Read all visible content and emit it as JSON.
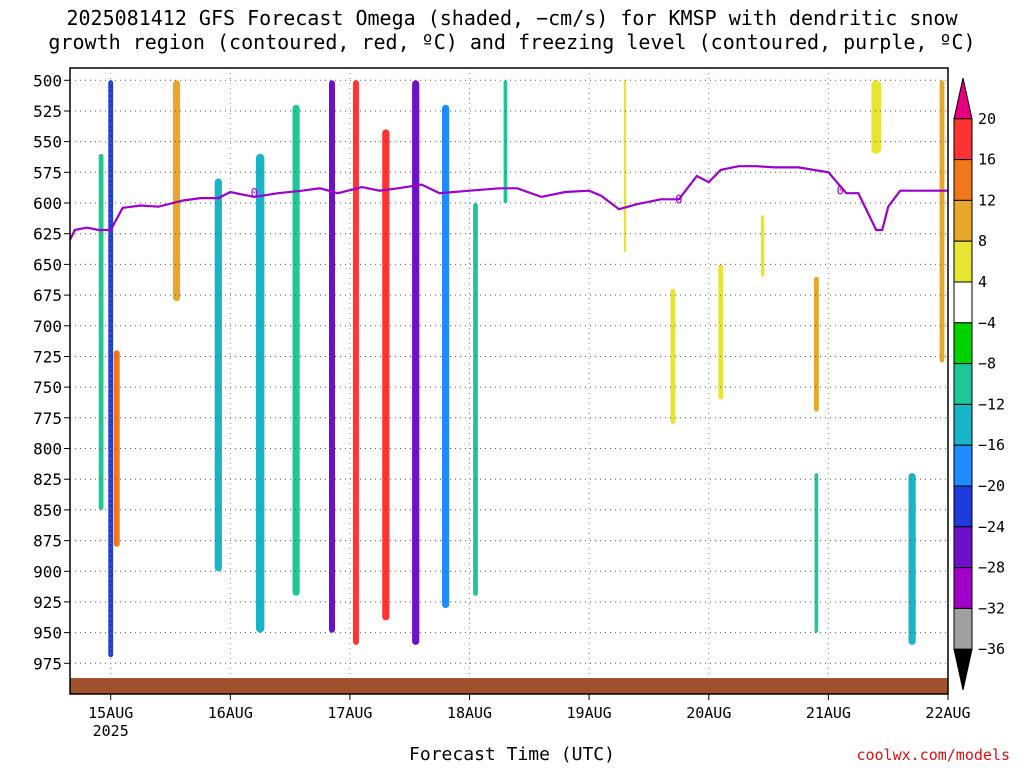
{
  "title_line1": "2025081412 GFS Forecast Omega (shaded, −cm/s) for KMSP with dendritic snow",
  "title_line2": "growth region (contoured, red, ºC) and freezing level (contoured, purple, ºC)",
  "xlabel": "Forecast Time (UTC)",
  "credit": "coolwx.com/models",
  "chart_data": {
    "type": "heatmap",
    "title": "2025081412 GFS Forecast Omega (shaded, −cm/s) for KMSP with dendritic snow growth region (contoured, red, ºC) and freezing level (contoured, purple, ºC)",
    "xlabel": "Forecast Time (UTC)",
    "ylabel": "",
    "y_ticks": [
      500,
      525,
      550,
      575,
      600,
      625,
      650,
      675,
      700,
      725,
      750,
      775,
      800,
      825,
      850,
      875,
      900,
      925,
      950,
      975
    ],
    "ylim": [
      1000,
      490
    ],
    "x_ticks": [
      "15AUG",
      "16AUG",
      "17AUG",
      "18AUG",
      "19AUG",
      "20AUG",
      "21AUG",
      "22AUG"
    ],
    "x_tick_sub": "2025",
    "xlim": [
      -0.34,
      7.0
    ],
    "grid": true,
    "colorbar": {
      "labels": [
        "20",
        "16",
        "12",
        "8",
        "4",
        "−4",
        "−8",
        "−12",
        "−16",
        "−20",
        "−24",
        "−28",
        "−32",
        "−36"
      ],
      "colors": [
        "#e6007e",
        "#ff3333",
        "#f07818",
        "#e6a82a",
        "#e6e632",
        "#ffffff",
        "#00d200",
        "#1ec896",
        "#18b4c8",
        "#1e8cff",
        "#1e3cdc",
        "#6e10c8",
        "#a000c8",
        "#a0a0a0",
        "#000000"
      ]
    },
    "freezing_level": {
      "color": "#9900cc",
      "x": [
        -0.34,
        -0.3,
        -0.2,
        -0.1,
        0.0,
        0.1,
        0.25,
        0.4,
        0.6,
        0.75,
        0.9,
        1.0,
        1.2,
        1.4,
        1.6,
        1.75,
        1.9,
        2.1,
        2.25,
        2.4,
        2.6,
        2.75,
        3.0,
        3.25,
        3.4,
        3.6,
        3.8,
        4.0,
        4.1,
        4.25,
        4.4,
        4.6,
        4.75,
        4.9,
        5.0,
        5.1,
        5.25,
        5.4,
        5.55,
        5.75,
        6.0,
        6.15,
        6.25,
        6.4,
        6.45,
        6.5,
        6.6,
        7.0
      ],
      "y": [
        630,
        622,
        620,
        622,
        622,
        604,
        602,
        603,
        598,
        596,
        596,
        591,
        595,
        592,
        590,
        588,
        592,
        587,
        590,
        588,
        585,
        592,
        590,
        588,
        588,
        595,
        591,
        590,
        594,
        605,
        601,
        597,
        597,
        578,
        583,
        573,
        570,
        570,
        571,
        571,
        575,
        592,
        592,
        622,
        622,
        603,
        590,
        590
      ],
      "label": "0"
    },
    "dgz_contour": {
      "color": "#ff3333",
      "label": "ºC"
    },
    "surface_color": "#a0522d",
    "omega_blobs": [
      {
        "t": 0.0,
        "w": 0.04,
        "p1": 500,
        "p2": 970,
        "v": -20
      },
      {
        "t": -0.08,
        "w": 0.04,
        "p1": 560,
        "p2": 850,
        "v": -8
      },
      {
        "t": 0.05,
        "w": 0.05,
        "p1": 720,
        "p2": 880,
        "v": 14
      },
      {
        "t": 0.55,
        "w": 0.06,
        "p1": 500,
        "p2": 680,
        "v": 10
      },
      {
        "t": 0.9,
        "w": 0.06,
        "p1": 580,
        "p2": 900,
        "v": -12
      },
      {
        "t": 1.25,
        "w": 0.07,
        "p1": 560,
        "p2": 950,
        "v": -12
      },
      {
        "t": 1.55,
        "w": 0.06,
        "p1": 520,
        "p2": 920,
        "v": -10
      },
      {
        "t": 1.85,
        "w": 0.05,
        "p1": 500,
        "p2": 950,
        "v": -24
      },
      {
        "t": 2.05,
        "w": 0.05,
        "p1": 500,
        "p2": 960,
        "v": 18
      },
      {
        "t": 2.3,
        "w": 0.06,
        "p1": 540,
        "p2": 940,
        "v": 16
      },
      {
        "t": 2.55,
        "w": 0.06,
        "p1": 500,
        "p2": 960,
        "v": -24
      },
      {
        "t": 2.8,
        "w": 0.06,
        "p1": 520,
        "p2": 930,
        "v": -16
      },
      {
        "t": 3.05,
        "w": 0.04,
        "p1": 600,
        "p2": 920,
        "v": -8
      },
      {
        "t": 3.3,
        "w": 0.03,
        "p1": 500,
        "p2": 600,
        "v": -8
      },
      {
        "t": 4.3,
        "w": 0.02,
        "p1": 500,
        "p2": 640,
        "v": 6
      },
      {
        "t": 4.7,
        "w": 0.04,
        "p1": 670,
        "p2": 780,
        "v": 6
      },
      {
        "t": 5.1,
        "w": 0.04,
        "p1": 650,
        "p2": 760,
        "v": 6
      },
      {
        "t": 5.45,
        "w": 0.03,
        "p1": 610,
        "p2": 660,
        "v": 6
      },
      {
        "t": 5.9,
        "w": 0.04,
        "p1": 660,
        "p2": 770,
        "v": 10
      },
      {
        "t": 6.4,
        "w": 0.08,
        "p1": 500,
        "p2": 560,
        "v": 6
      },
      {
        "t": 5.9,
        "w": 0.03,
        "p1": 820,
        "p2": 950,
        "v": -10
      },
      {
        "t": 6.7,
        "w": 0.06,
        "p1": 820,
        "p2": 960,
        "v": -14
      },
      {
        "t": 6.95,
        "w": 0.04,
        "p1": 500,
        "p2": 730,
        "v": 10
      }
    ]
  }
}
